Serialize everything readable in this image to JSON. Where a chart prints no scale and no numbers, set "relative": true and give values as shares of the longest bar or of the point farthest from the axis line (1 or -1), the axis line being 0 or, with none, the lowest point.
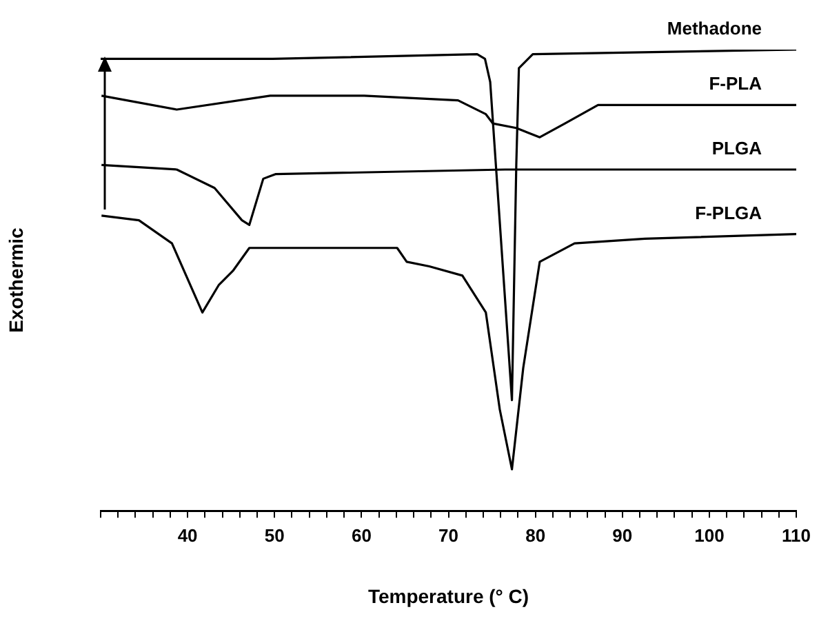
{
  "chart_data": {
    "type": "line",
    "relative": true,
    "xlabel": "Temperature (° C)",
    "ylabel": "Exothermic",
    "xlim": [
      30,
      110
    ],
    "xticks": [
      {
        "value": 30,
        "label": null
      },
      {
        "value": 32,
        "label": null
      },
      {
        "value": 34,
        "label": null
      },
      {
        "value": 36,
        "label": null
      },
      {
        "value": 38,
        "label": null
      },
      40,
      {
        "value": 42,
        "label": null
      },
      {
        "value": 44,
        "label": null
      },
      {
        "value": 46,
        "label": null
      },
      {
        "value": 48,
        "label": null
      },
      50,
      {
        "value": 52,
        "label": null
      },
      {
        "value": 54,
        "label": null
      },
      {
        "value": 56,
        "label": null
      },
      {
        "value": 58,
        "label": null
      },
      60,
      {
        "value": 62,
        "label": null
      },
      {
        "value": 64,
        "label": null
      },
      {
        "value": 66,
        "label": null
      },
      {
        "value": 68,
        "label": null
      },
      70,
      {
        "value": 72,
        "label": null
      },
      {
        "value": 74,
        "label": null
      },
      {
        "value": 76,
        "label": null
      },
      {
        "value": 78,
        "label": null
      },
      80,
      {
        "value": 82,
        "label": null
      },
      {
        "value": 84,
        "label": null
      },
      {
        "value": 86,
        "label": null
      },
      {
        "value": 88,
        "label": null
      },
      90,
      {
        "value": 92,
        "label": null
      },
      {
        "value": 94,
        "label": null
      },
      {
        "value": 96,
        "label": null
      },
      {
        "value": 98,
        "label": null
      },
      100,
      {
        "value": 102,
        "label": null
      },
      {
        "value": 104,
        "label": null
      },
      {
        "value": 106,
        "label": null
      },
      {
        "value": 108,
        "label": null
      },
      110
    ],
    "grid": false,
    "legend": false,
    "marker": "none",
    "line_style": "solid",
    "series": [
      {
        "name": "Methadone",
        "color": "#000000",
        "x": [
          30,
          49.8,
          73.3,
          74.2,
          74.8,
          77.3,
          77.8,
          78.1,
          79.7,
          110
        ],
        "values": [
          0.98,
          0.98,
          0.99,
          0.98,
          0.93,
          0.24,
          0.75,
          0.96,
          0.99,
          1.0
        ]
      },
      {
        "name": "F-PLA",
        "color": "#000000",
        "x": [
          30.1,
          38.75,
          49.5,
          60.3,
          71.1,
          74.3,
          75.1,
          77.8,
          80.5,
          83.4,
          87.2,
          110
        ],
        "values": [
          0.9,
          0.87,
          0.9,
          0.9,
          0.89,
          0.86,
          0.84,
          0.83,
          0.81,
          0.84,
          0.88,
          0.88
        ]
      },
      {
        "name": "PLGA",
        "color": "#000000",
        "x": [
          30.1,
          38.75,
          43.1,
          46.25,
          47.1,
          48.7,
          50.1,
          76.5,
          110
        ],
        "values": [
          0.75,
          0.74,
          0.7,
          0.63,
          0.62,
          0.72,
          0.73,
          0.74,
          0.74
        ]
      },
      {
        "name": "F-PLGA",
        "color": "#000000",
        "x": [
          30.1,
          34.4,
          38.2,
          41.7,
          43.6,
          45.2,
          47.1,
          47.9,
          64.1,
          65.2,
          67.8,
          71.6,
          74.3,
          75.9,
          77.3,
          78.6,
          80.5,
          84.5,
          92.6,
          110
        ],
        "values": [
          0.64,
          0.63,
          0.58,
          0.43,
          0.49,
          0.52,
          0.57,
          0.57,
          0.57,
          0.54,
          0.53,
          0.51,
          0.43,
          0.22,
          0.09,
          0.31,
          0.54,
          0.58,
          0.59,
          0.6
        ]
      }
    ]
  }
}
